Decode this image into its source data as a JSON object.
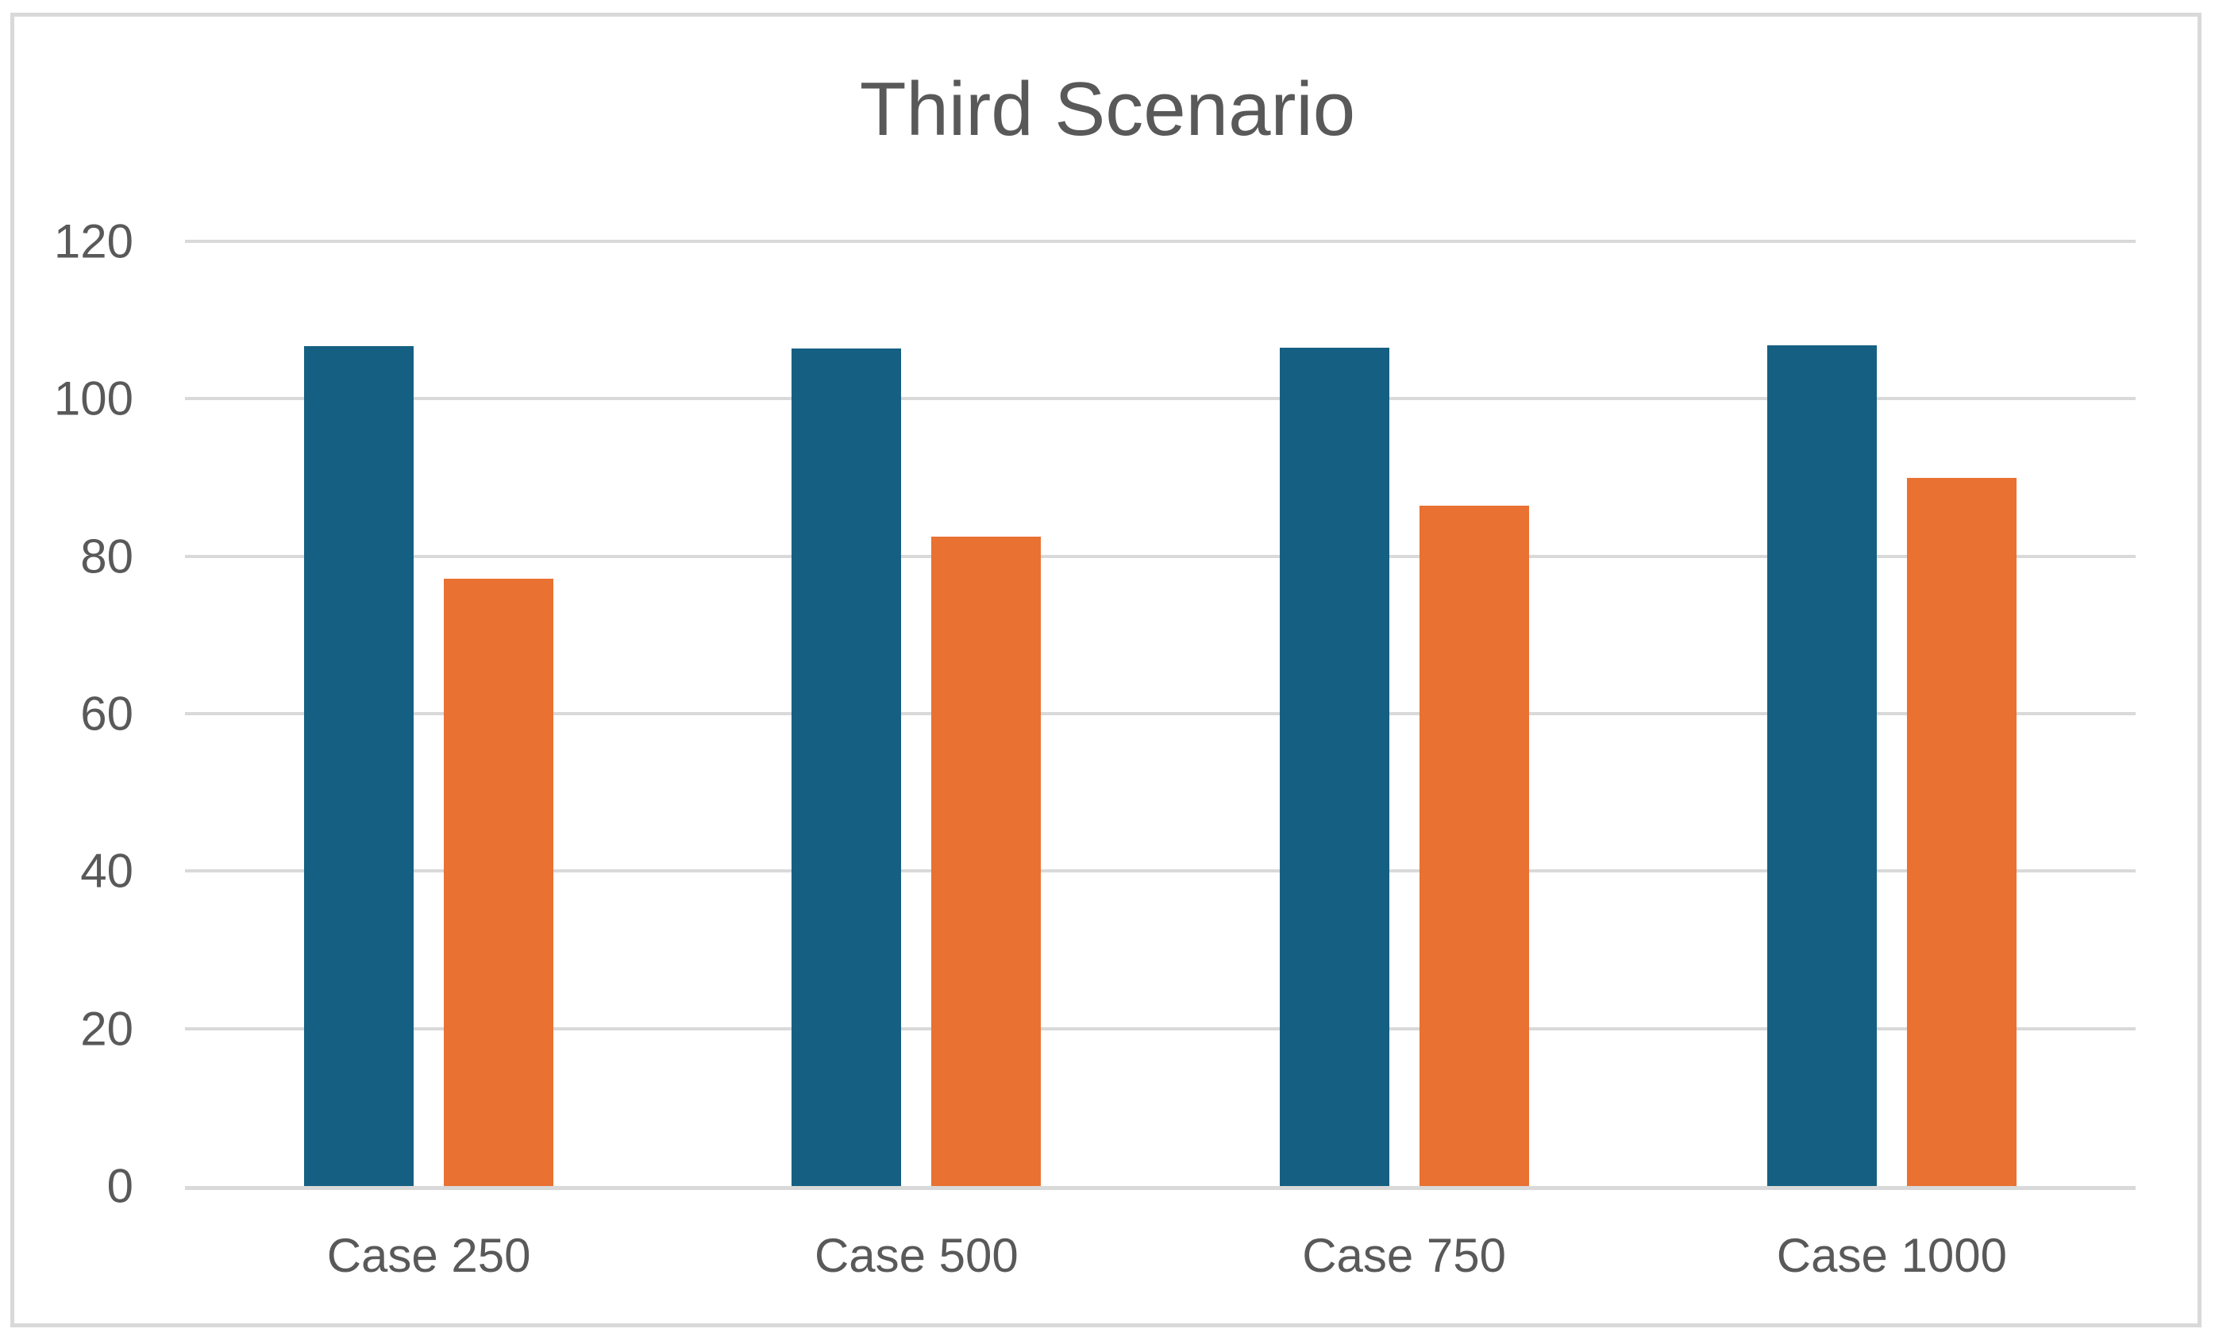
{
  "chart_data": {
    "type": "bar",
    "title": "Third Scenario",
    "categories": [
      "Case 250",
      "Case 500",
      "Case 750",
      "Case 1000"
    ],
    "series": [
      {
        "values": [
          106.7,
          106.4,
          106.5,
          106.8
        ]
      },
      {
        "values": [
          77.1,
          82.5,
          86.4,
          89.9
        ]
      }
    ],
    "series_colors": [
      "#156082",
      "#E97132"
    ],
    "xlabel": "",
    "ylabel": "",
    "ylim": [
      0,
      120
    ],
    "ytick_step": 20,
    "ytick_labels": [
      "0",
      "20",
      "40",
      "60",
      "80",
      "100",
      "120"
    ],
    "grid": true,
    "legend": "none",
    "colors": {
      "title_text": "#595959",
      "axis_text": "#595959",
      "gridline": "#D9D9D9",
      "axis_line": "#D9D9D9",
      "frame_border": "#D9D9D9",
      "background": "#FFFFFF"
    }
  }
}
